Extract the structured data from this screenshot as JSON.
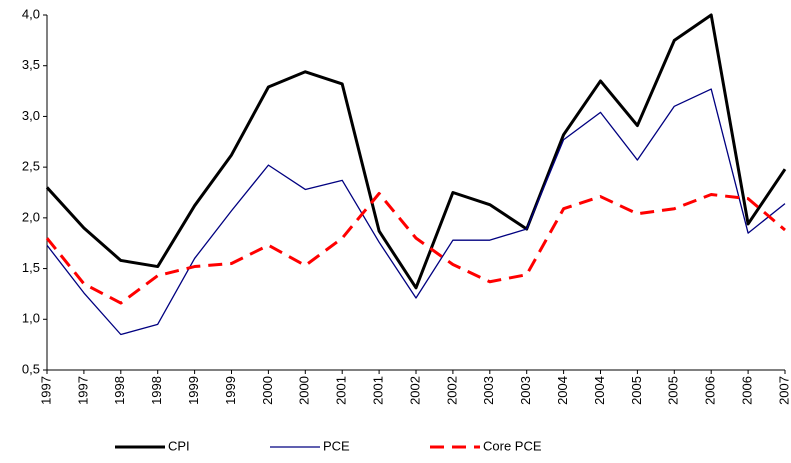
{
  "chart_data": {
    "type": "line",
    "categories": [
      "1997",
      "1997",
      "1998",
      "1998",
      "1999",
      "1999",
      "2000",
      "2000",
      "2001",
      "2001",
      "2002",
      "2002",
      "2003",
      "2003",
      "2004",
      "2004",
      "2005",
      "2005",
      "2006",
      "2006",
      "2007"
    ],
    "series": [
      {
        "name": "CPI",
        "color": "#000000",
        "line_width": 3,
        "dashed": false,
        "values": [
          2.3,
          1.9,
          1.58,
          1.52,
          2.12,
          2.62,
          3.29,
          3.44,
          3.32,
          1.87,
          1.31,
          2.25,
          2.13,
          1.89,
          2.82,
          3.35,
          2.91,
          3.75,
          4.0,
          1.94,
          2.48
        ]
      },
      {
        "name": "PCE",
        "color": "#000080",
        "line_width": 1.3,
        "dashed": false,
        "values": [
          1.73,
          1.26,
          0.85,
          0.95,
          1.6,
          2.07,
          2.52,
          2.28,
          2.37,
          1.76,
          1.21,
          1.78,
          1.78,
          1.89,
          2.77,
          3.04,
          2.57,
          3.1,
          3.27,
          1.85,
          2.14
        ]
      },
      {
        "name": "Core PCE",
        "color": "#ff0000",
        "line_width": 3,
        "dashed": true,
        "values": [
          1.8,
          1.35,
          1.16,
          1.43,
          1.52,
          1.55,
          1.73,
          1.53,
          1.8,
          2.24,
          1.8,
          1.54,
          1.37,
          1.44,
          2.09,
          2.21,
          2.04,
          2.09,
          2.23,
          2.19,
          1.88
        ]
      }
    ],
    "ylim": [
      0.5,
      4.0
    ],
    "yticks": [
      {
        "value": 0.5,
        "label": "0,5"
      },
      {
        "value": 1.0,
        "label": "1,0"
      },
      {
        "value": 1.5,
        "label": "1,5"
      },
      {
        "value": 2.0,
        "label": "2,0"
      },
      {
        "value": 2.5,
        "label": "2,5"
      },
      {
        "value": 3.0,
        "label": "3,0"
      },
      {
        "value": 3.5,
        "label": "3,5"
      },
      {
        "value": 4.0,
        "label": "4,0"
      }
    ],
    "grid": false,
    "legend": "bottom"
  }
}
